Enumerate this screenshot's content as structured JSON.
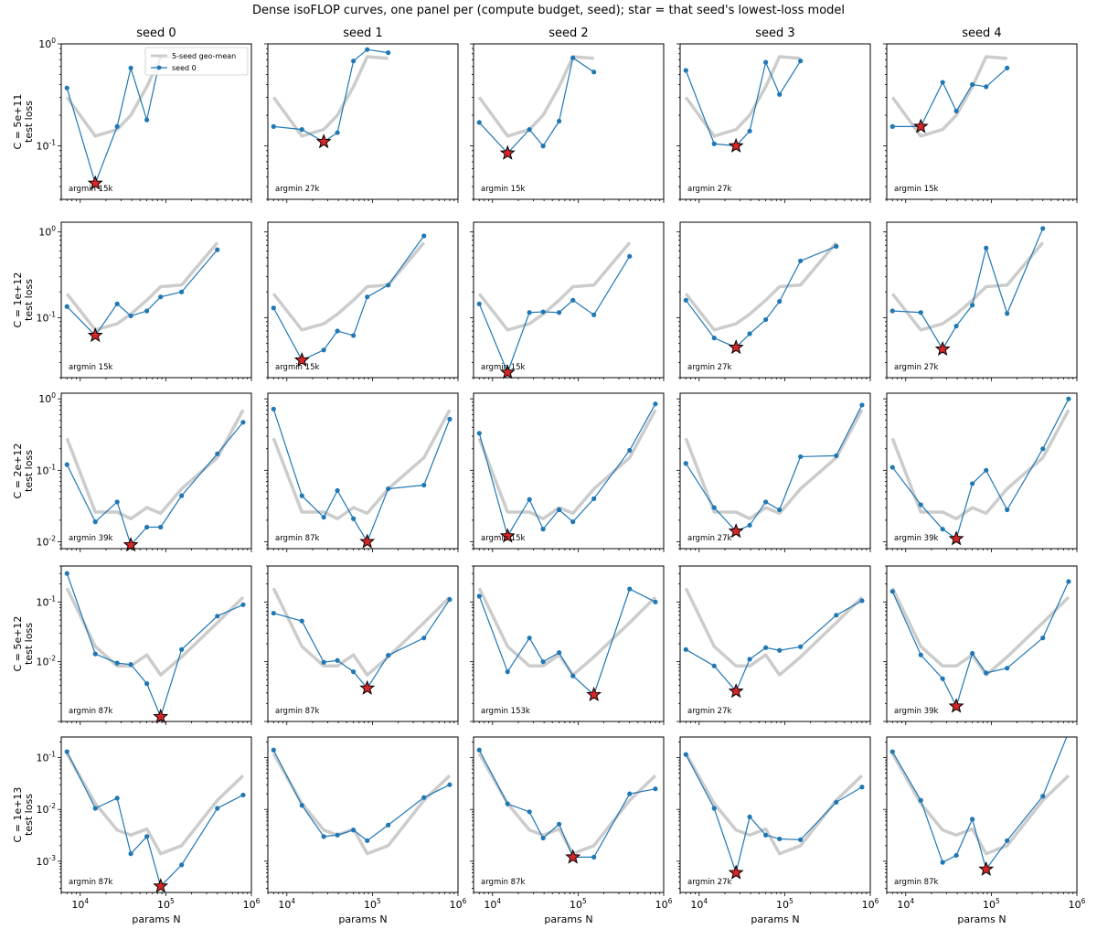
{
  "figure": {
    "title": "Dense isoFLOP curves, one panel per (compute budget, seed); star = that seed's lowest-loss model"
  },
  "legend": {
    "mean_label": "5-seed geo-mean",
    "seed_label": "seed 0"
  },
  "colors": {
    "seed_line": "#1f77b4",
    "mean_line": "#cccccc",
    "star_fill": "#d62728",
    "star_edge": "#000000"
  },
  "axes": {
    "xlabel": "params N",
    "ylabel": "test loss",
    "xscale": "log",
    "yscale": "log",
    "xlim": [
      6000,
      1000000
    ],
    "x_tick_labels": [
      "10^4",
      "10^5",
      "10^6"
    ]
  },
  "column_titles": [
    "seed 0",
    "seed 1",
    "seed 2",
    "seed 3",
    "seed 4"
  ],
  "row_labels": [
    "C = 5e+11",
    "C = 1e+12",
    "C = 2e+12",
    "C = 5e+12",
    "C = 1e+13"
  ],
  "chart_data": {
    "type": "line",
    "layout": "grid 5x5, rows = compute budget, columns = seed",
    "grid": false,
    "legend_position": "top-right of first panel",
    "rows": [
      {
        "label": "C = 5e+11",
        "ylim": [
          0.03,
          1.0
        ],
        "y_ticks": [
          0.1,
          1.0
        ],
        "y_tick_labels": [
          "10^-1",
          "10^0"
        ],
        "mean": {
          "x": [
            7000,
            15000,
            27000,
            39000,
            60000,
            87000,
            153000
          ],
          "y": [
            0.3,
            0.125,
            0.145,
            0.2,
            0.38,
            0.75,
            0.72
          ]
        },
        "seeds": [
          {
            "x": [
              7000,
              15000,
              27000,
              39000,
              60000,
              87000
            ],
            "y": [
              0.37,
              0.043,
              0.155,
              0.58,
              0.18,
              0.75
            ],
            "argmin_label": "argmin 15k",
            "star": [
              15000,
              0.043
            ]
          },
          {
            "x": [
              7000,
              15000,
              27000,
              39000,
              60000,
              87000,
              153000
            ],
            "y": [
              0.155,
              0.145,
              0.11,
              0.135,
              0.68,
              0.88,
              0.82
            ],
            "argmin_label": "argmin 27k",
            "star": [
              27000,
              0.11
            ]
          },
          {
            "x": [
              7000,
              15000,
              27000,
              39000,
              60000,
              87000,
              153000
            ],
            "y": [
              0.17,
              0.085,
              0.145,
              0.1,
              0.175,
              0.73,
              0.53
            ],
            "argmin_label": "argmin 15k",
            "star": [
              15000,
              0.085
            ]
          },
          {
            "x": [
              7000,
              15000,
              27000,
              39000,
              60000,
              87000,
              153000
            ],
            "y": [
              0.55,
              0.105,
              0.1,
              0.14,
              0.66,
              0.32,
              0.68
            ],
            "argmin_label": "argmin 27k",
            "star": [
              27000,
              0.1
            ]
          },
          {
            "x": [
              7000,
              15000,
              27000,
              39000,
              60000,
              87000,
              153000
            ],
            "y": [
              0.155,
              0.155,
              0.42,
              0.22,
              0.4,
              0.38,
              0.58
            ],
            "argmin_label": "argmin 15k",
            "star": [
              15000,
              0.155
            ]
          }
        ]
      },
      {
        "label": "C = 1e+12",
        "ylim": [
          0.02,
          1.3
        ],
        "y_ticks": [
          0.1,
          1.0
        ],
        "y_tick_labels": [
          "10^-1",
          "10^0"
        ],
        "mean": {
          "x": [
            7000,
            15000,
            27000,
            39000,
            60000,
            87000,
            153000,
            400000
          ],
          "y": [
            0.19,
            0.072,
            0.085,
            0.11,
            0.16,
            0.23,
            0.24,
            0.75
          ]
        },
        "seeds": [
          {
            "x": [
              7000,
              15000,
              27000,
              39000,
              60000,
              87000,
              153000,
              400000
            ],
            "y": [
              0.135,
              0.062,
              0.145,
              0.105,
              0.12,
              0.175,
              0.2,
              0.62
            ],
            "argmin_label": "argmin 15k",
            "star": [
              15000,
              0.062
            ]
          },
          {
            "x": [
              7000,
              15000,
              27000,
              39000,
              60000,
              87000,
              153000,
              400000
            ],
            "y": [
              0.13,
              0.032,
              0.042,
              0.07,
              0.062,
              0.175,
              0.24,
              0.9
            ],
            "argmin_label": "argmin 15k",
            "star": [
              15000,
              0.032
            ]
          },
          {
            "x": [
              7000,
              15000,
              27000,
              39000,
              60000,
              87000,
              153000,
              400000
            ],
            "y": [
              0.145,
              0.023,
              0.115,
              0.117,
              0.115,
              0.16,
              0.108,
              0.52
            ],
            "argmin_label": "argmin 15k",
            "star": [
              15000,
              0.023
            ]
          },
          {
            "x": [
              7000,
              15000,
              27000,
              39000,
              60000,
              87000,
              153000,
              400000
            ],
            "y": [
              0.16,
              0.058,
              0.045,
              0.065,
              0.095,
              0.155,
              0.46,
              0.68
            ],
            "argmin_label": "argmin 27k",
            "star": [
              27000,
              0.045
            ]
          },
          {
            "x": [
              7000,
              15000,
              27000,
              39000,
              60000,
              87000,
              153000,
              400000
            ],
            "y": [
              0.12,
              0.115,
              0.043,
              0.08,
              0.14,
              0.65,
              0.112,
              1.1
            ],
            "argmin_label": "argmin 27k",
            "star": [
              27000,
              0.043
            ]
          }
        ]
      },
      {
        "label": "C = 2e+12",
        "ylim": [
          0.008,
          1.2
        ],
        "y_ticks": [
          0.01,
          0.1,
          1.0
        ],
        "y_tick_labels": [
          "10^-2",
          "10^-1",
          "10^0"
        ],
        "mean": {
          "x": [
            7000,
            15000,
            27000,
            39000,
            60000,
            87000,
            153000,
            400000,
            800000
          ],
          "y": [
            0.28,
            0.026,
            0.026,
            0.021,
            0.03,
            0.025,
            0.055,
            0.15,
            0.7
          ]
        },
        "seeds": [
          {
            "x": [
              7000,
              15000,
              27000,
              39000,
              60000,
              87000,
              153000,
              400000,
              800000
            ],
            "y": [
              0.12,
              0.019,
              0.036,
              0.009,
              0.016,
              0.016,
              0.044,
              0.17,
              0.47
            ],
            "argmin_label": "argmin 39k",
            "star": [
              39000,
              0.009
            ]
          },
          {
            "x": [
              7000,
              15000,
              27000,
              39000,
              60000,
              87000,
              153000,
              400000,
              800000
            ],
            "y": [
              0.72,
              0.044,
              0.022,
              0.052,
              0.021,
              0.01,
              0.055,
              0.062,
              0.52
            ],
            "argmin_label": "argmin 87k",
            "star": [
              87000,
              0.01
            ]
          },
          {
            "x": [
              7000,
              15000,
              27000,
              39000,
              60000,
              87000,
              153000,
              400000,
              800000
            ],
            "y": [
              0.33,
              0.012,
              0.039,
              0.015,
              0.028,
              0.019,
              0.04,
              0.19,
              0.85
            ],
            "argmin_label": "argmin 15k",
            "star": [
              15000,
              0.012
            ]
          },
          {
            "x": [
              7000,
              15000,
              27000,
              39000,
              60000,
              87000,
              153000,
              400000,
              800000
            ],
            "y": [
              0.125,
              0.03,
              0.014,
              0.017,
              0.036,
              0.028,
              0.155,
              0.16,
              0.82
            ],
            "argmin_label": "argmin 27k",
            "star": [
              27000,
              0.014
            ]
          },
          {
            "x": [
              7000,
              15000,
              27000,
              39000,
              60000,
              87000,
              153000,
              400000,
              800000
            ],
            "y": [
              0.11,
              0.033,
              0.015,
              0.011,
              0.065,
              0.1,
              0.028,
              0.2,
              1.0
            ],
            "argmin_label": "argmin 39k",
            "star": [
              39000,
              0.011
            ]
          }
        ]
      },
      {
        "label": "C = 5e+12",
        "ylim": [
          0.001,
          0.4
        ],
        "y_ticks": [
          0.01,
          0.1
        ],
        "y_tick_labels": [
          "10^-2",
          "10^-1"
        ],
        "mean": {
          "x": [
            7000,
            15000,
            27000,
            39000,
            60000,
            87000,
            153000,
            400000,
            800000
          ],
          "y": [
            0.17,
            0.018,
            0.0085,
            0.0085,
            0.013,
            0.006,
            0.012,
            0.045,
            0.12
          ]
        },
        "seeds": [
          {
            "x": [
              7000,
              15000,
              27000,
              39000,
              60000,
              87000,
              153000,
              400000,
              800000
            ],
            "y": [
              0.3,
              0.0135,
              0.0095,
              0.009,
              0.0043,
              0.0012,
              0.016,
              0.058,
              0.09
            ],
            "argmin_label": "argmin 87k",
            "star": [
              87000,
              0.0012
            ]
          },
          {
            "x": [
              7000,
              15000,
              27000,
              39000,
              60000,
              87000,
              153000,
              400000,
              800000
            ],
            "y": [
              0.065,
              0.048,
              0.0098,
              0.0105,
              0.0068,
              0.0036,
              0.0128,
              0.025,
              0.11
            ],
            "argmin_label": "argmin 87k",
            "star": [
              87000,
              0.0036
            ]
          },
          {
            "x": [
              7000,
              15000,
              27000,
              39000,
              60000,
              87000,
              153000,
              400000,
              800000
            ],
            "y": [
              0.125,
              0.0068,
              0.025,
              0.01,
              0.0142,
              0.0058,
              0.0028,
              0.165,
              0.1
            ],
            "argmin_label": "argmin 153k",
            "star": [
              153000,
              0.0028
            ]
          },
          {
            "x": [
              7000,
              15000,
              27000,
              39000,
              60000,
              87000,
              153000,
              400000,
              800000
            ],
            "y": [
              0.016,
              0.0085,
              0.0032,
              0.011,
              0.0172,
              0.0155,
              0.0178,
              0.06,
              0.105
            ],
            "argmin_label": "argmin 27k",
            "star": [
              27000,
              0.0032
            ]
          },
          {
            "x": [
              7000,
              15000,
              27000,
              39000,
              60000,
              87000,
              153000,
              400000,
              800000
            ],
            "y": [
              0.15,
              0.013,
              0.0052,
              0.0018,
              0.0138,
              0.0065,
              0.0078,
              0.025,
              0.22
            ],
            "argmin_label": "argmin 39k",
            "star": [
              39000,
              0.0018
            ]
          }
        ]
      },
      {
        "label": "C = 1e+13",
        "ylim": [
          0.00025,
          0.25
        ],
        "y_ticks": [
          0.001,
          0.01,
          0.1
        ],
        "y_tick_labels": [
          "10^-3",
          "10^-2",
          "10^-1"
        ],
        "mean": {
          "x": [
            7000,
            15000,
            27000,
            39000,
            60000,
            87000,
            153000,
            400000,
            800000
          ],
          "y": [
            0.12,
            0.013,
            0.004,
            0.0032,
            0.0042,
            0.0014,
            0.002,
            0.015,
            0.045
          ]
        },
        "seeds": [
          {
            "x": [
              7000,
              15000,
              27000,
              39000,
              60000,
              87000,
              153000,
              400000,
              800000
            ],
            "y": [
              0.13,
              0.0105,
              0.0165,
              0.0014,
              0.003,
              0.00033,
              0.00085,
              0.0105,
              0.019
            ],
            "argmin_label": "argmin 87k",
            "star": [
              87000,
              0.00033
            ]
          },
          {
            "x": [
              7000,
              15000,
              27000,
              39000,
              60000,
              87000,
              153000,
              400000,
              800000
            ],
            "y": [
              0.14,
              0.012,
              0.003,
              0.0032,
              0.004,
              0.0025,
              0.005,
              0.017,
              0.03
            ]
          },
          {
            "x": [
              7000,
              15000,
              27000,
              39000,
              60000,
              87000,
              153000,
              400000,
              800000
            ],
            "y": [
              0.14,
              0.0128,
              0.009,
              0.0028,
              0.0052,
              0.0012,
              0.0012,
              0.02,
              0.025
            ],
            "argmin_label": "argmin 87k",
            "star": [
              87000,
              0.0012
            ]
          },
          {
            "x": [
              7000,
              15000,
              27000,
              39000,
              60000,
              87000,
              153000,
              400000,
              800000
            ],
            "y": [
              0.115,
              0.0105,
              0.0006,
              0.0072,
              0.0032,
              0.0027,
              0.0026,
              0.0138,
              0.027
            ],
            "argmin_label": "argmin 27k",
            "star": [
              27000,
              0.0006
            ]
          },
          {
            "x": [
              7000,
              15000,
              27000,
              39000,
              60000,
              87000,
              153000,
              400000,
              800000
            ],
            "y": [
              0.13,
              0.015,
              0.00095,
              0.0013,
              0.0065,
              0.0007,
              0.0025,
              0.018,
              0.31
            ],
            "argmin_label": "argmin 87k",
            "star": [
              87000,
              0.0007
            ]
          }
        ]
      }
    ]
  }
}
